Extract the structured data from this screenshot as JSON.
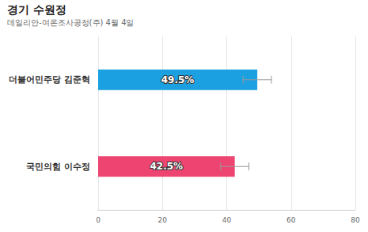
{
  "chart_data": {
    "type": "bar",
    "title": "경기 수원정",
    "subtitle": "데일리안-여론조사공정(주) 4월 4일",
    "orientation": "horizontal",
    "categories": [
      "더불어민주당 김준혁",
      "국민의힘 이수정"
    ],
    "values": [
      49.5,
      42.5
    ],
    "value_labels": [
      "49.5%",
      "42.5%"
    ],
    "errors": [
      4.4,
      4.4
    ],
    "colors": [
      "#1ba1e2",
      "#ee4472"
    ],
    "xlim": [
      0,
      80
    ],
    "xticks": [
      0,
      20,
      40,
      60,
      80
    ],
    "grid": true,
    "data_labels": true
  }
}
